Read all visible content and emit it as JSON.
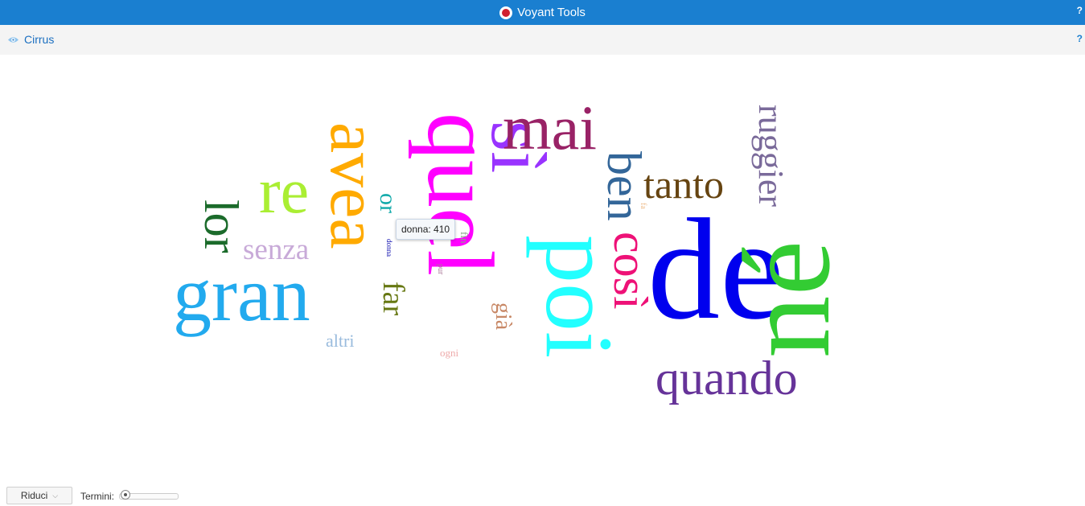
{
  "app": {
    "title": "Voyant Tools",
    "help": "?"
  },
  "panel": {
    "title": "Cirrus",
    "help": "?"
  },
  "cloud": {
    "words": [
      {
        "text": "de",
        "color": "#0000ee"
      },
      {
        "text": "né",
        "color": "#33cc33"
      },
      {
        "text": "quel",
        "color": "#ff00ff"
      },
      {
        "text": "sì",
        "color": "#9933ff"
      },
      {
        "text": "poi",
        "color": "#22ffff"
      },
      {
        "text": "avea",
        "color": "#ffaa00"
      },
      {
        "text": "gran",
        "color": "#22aaee"
      },
      {
        "text": "re",
        "color": "#aaee33"
      },
      {
        "text": "lor",
        "color": "#1b6b2b"
      },
      {
        "text": "mai",
        "color": "#992266"
      },
      {
        "text": "ben",
        "color": "#336699"
      },
      {
        "text": "così",
        "color": "#ee1177"
      },
      {
        "text": "tanto",
        "color": "#664411"
      },
      {
        "text": "ruggier",
        "color": "#7a6a9a"
      },
      {
        "text": "quando",
        "color": "#663399"
      },
      {
        "text": "senza",
        "color": "#c8aad8"
      },
      {
        "text": "far",
        "color": "#667711"
      },
      {
        "text": "or",
        "color": "#11aaaa"
      },
      {
        "text": "già",
        "color": "#c88866"
      },
      {
        "text": "altri",
        "color": "#99bbdd"
      },
      {
        "text": "ogni",
        "color": "#eeaaaa"
      },
      {
        "text": "fin",
        "color": "#88aa88"
      },
      {
        "text": "pur",
        "color": "#aa7799"
      },
      {
        "text": "fa",
        "color": "#eebb88"
      },
      {
        "text": "donna",
        "color": "#0000aa"
      }
    ],
    "tooltip": "donna: 410"
  },
  "toolbar": {
    "reduce_label": "Riduci",
    "terms_label": "Termini:",
    "terms_slider_value": 0.06
  }
}
